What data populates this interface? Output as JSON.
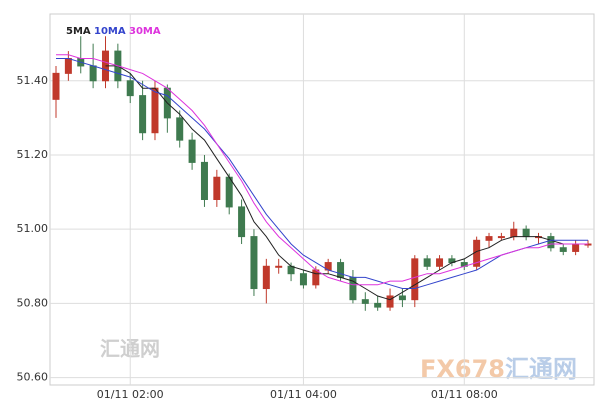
{
  "chart_data": {
    "type": "candlestick",
    "categories": [
      null,
      null,
      null,
      null,
      null,
      null,
      "01/11 02:00",
      null,
      null,
      null,
      null,
      null,
      null,
      null,
      null,
      null,
      null,
      null,
      null,
      null,
      "01/11 04:00",
      null,
      null,
      null,
      null,
      null,
      null,
      null,
      null,
      null,
      null,
      null,
      null,
      "01/11 08:00",
      null,
      null,
      null,
      null,
      null,
      null,
      null,
      null,
      null,
      null
    ],
    "open": [
      51.35,
      51.42,
      51.46,
      51.44,
      51.4,
      51.48,
      51.4,
      51.36,
      51.26,
      51.38,
      51.3,
      51.24,
      51.18,
      51.08,
      51.14,
      51.06,
      50.98,
      50.84,
      50.9,
      50.9,
      50.88,
      50.85,
      50.89,
      50.91,
      50.87,
      50.81,
      50.8,
      50.79,
      50.82,
      50.81,
      50.92,
      50.9,
      50.92,
      50.91,
      50.9,
      50.97,
      50.98,
      50.98,
      51.0,
      50.98,
      50.98,
      50.95,
      50.94,
      50.96
    ],
    "high": [
      51.44,
      51.48,
      51.52,
      51.5,
      51.52,
      51.5,
      51.42,
      51.4,
      51.4,
      51.39,
      51.32,
      51.26,
      51.2,
      51.16,
      51.15,
      51.08,
      51.0,
      50.92,
      50.92,
      50.91,
      50.89,
      50.9,
      50.92,
      50.92,
      50.89,
      50.83,
      50.82,
      50.84,
      50.84,
      50.93,
      50.93,
      50.93,
      50.93,
      50.92,
      50.98,
      50.99,
      50.99,
      51.02,
      51.01,
      50.99,
      50.99,
      50.96,
      50.97,
      50.97
    ],
    "low": [
      51.3,
      51.4,
      51.42,
      51.38,
      51.38,
      51.38,
      51.34,
      51.24,
      51.24,
      51.26,
      51.22,
      51.16,
      51.06,
      51.06,
      51.04,
      50.96,
      50.82,
      50.8,
      50.88,
      50.86,
      50.84,
      50.84,
      50.88,
      50.86,
      50.8,
      50.78,
      50.78,
      50.78,
      50.79,
      50.79,
      50.89,
      50.89,
      50.9,
      50.89,
      50.89,
      50.95,
      50.97,
      50.97,
      50.97,
      50.96,
      50.94,
      50.93,
      50.93,
      50.95
    ],
    "close": [
      51.42,
      51.46,
      51.44,
      51.4,
      51.48,
      51.4,
      51.36,
      51.26,
      51.38,
      51.3,
      51.24,
      51.18,
      51.08,
      51.14,
      51.06,
      50.98,
      50.84,
      50.9,
      50.9,
      50.88,
      50.85,
      50.89,
      50.91,
      50.87,
      50.81,
      50.8,
      50.79,
      50.82,
      50.81,
      50.92,
      50.9,
      50.92,
      50.91,
      50.9,
      50.97,
      50.98,
      50.98,
      51.0,
      50.98,
      50.98,
      50.95,
      50.94,
      50.96,
      50.96
    ],
    "up_color": "#c0392b",
    "down_color": "#3f7a4f",
    "series": [
      {
        "name": "5MA",
        "color": "#222222",
        "values": [
          null,
          null,
          null,
          null,
          51.44,
          51.44,
          51.42,
          51.38,
          51.38,
          51.34,
          51.31,
          51.27,
          51.24,
          51.19,
          51.14,
          51.09,
          51.02,
          50.98,
          50.93,
          50.9,
          50.89,
          50.88,
          50.88,
          50.87,
          50.86,
          50.84,
          50.82,
          50.81,
          50.83,
          50.85,
          50.87,
          50.89,
          50.91,
          50.92,
          50.94,
          50.95,
          50.97,
          50.98,
          50.98,
          50.98,
          50.97,
          50.96,
          50.96,
          50.96
        ]
      },
      {
        "name": "10MA",
        "color": "#3344cc",
        "values": [
          51.46,
          51.46,
          51.45,
          51.44,
          51.43,
          51.42,
          51.41,
          51.39,
          51.37,
          51.36,
          51.33,
          51.3,
          51.27,
          51.23,
          51.19,
          51.14,
          51.09,
          51.04,
          51.0,
          50.96,
          50.93,
          50.91,
          50.89,
          50.88,
          50.87,
          50.87,
          50.86,
          50.85,
          50.84,
          50.84,
          50.85,
          50.86,
          50.87,
          50.88,
          50.89,
          50.91,
          50.93,
          50.94,
          50.95,
          50.96,
          50.97,
          50.97,
          50.97,
          50.97
        ]
      },
      {
        "name": "30MA",
        "color": "#dd33dd",
        "values": [
          51.47,
          51.47,
          51.46,
          51.46,
          51.45,
          51.44,
          51.43,
          51.42,
          51.4,
          51.38,
          51.35,
          51.32,
          51.28,
          51.23,
          51.18,
          51.13,
          51.07,
          51.02,
          50.98,
          50.95,
          50.92,
          50.89,
          50.87,
          50.86,
          50.85,
          50.85,
          50.85,
          50.86,
          50.86,
          50.87,
          50.88,
          50.88,
          50.89,
          50.9,
          50.91,
          50.92,
          50.93,
          50.94,
          50.95,
          50.95,
          50.96,
          50.96,
          50.96,
          50.96
        ]
      }
    ],
    "ylim": [
      50.58,
      51.58
    ],
    "yticks": [
      {
        "value": 50.6,
        "label": "50.60"
      },
      {
        "value": 50.8,
        "label": "50.80"
      },
      {
        "value": 51.0,
        "label": "51.00"
      },
      {
        "value": 51.2,
        "label": "51.20"
      },
      {
        "value": 51.4,
        "label": "51.40"
      }
    ],
    "grid": true,
    "watermarks": [
      "汇通网",
      "FX678",
      "汇通网"
    ]
  }
}
